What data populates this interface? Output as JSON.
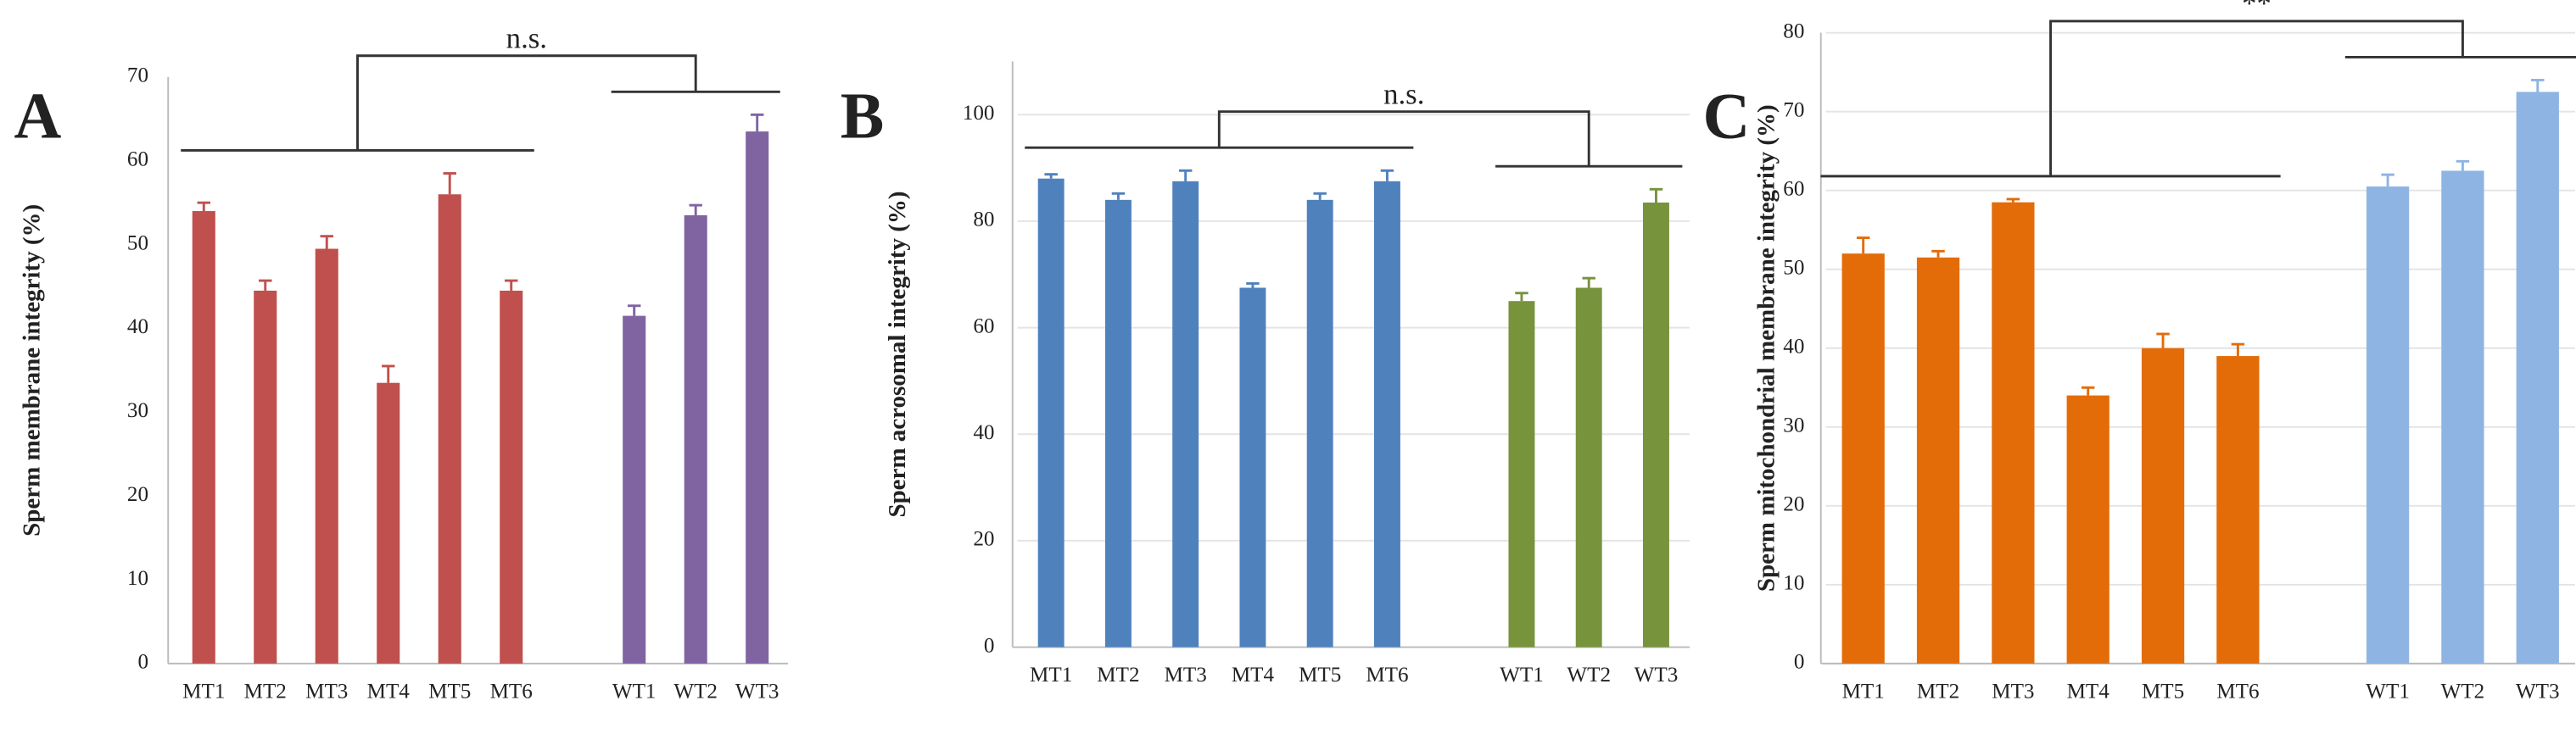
{
  "chart_data": [
    {
      "type": "bar",
      "panel_label": "A",
      "significance": "n.s.",
      "y_label": "Sperm membrane integrity (%)",
      "categories": [
        "MT1",
        "MT2",
        "MT3",
        "MT4",
        "MT5",
        "MT6",
        null,
        "WT1",
        "WT2",
        "WT3"
      ],
      "values": [
        54,
        44.5,
        49.5,
        33.5,
        56,
        44.5,
        null,
        41.5,
        53.5,
        63.5
      ],
      "errors": [
        1,
        1.2,
        1.5,
        2,
        2.5,
        1.2,
        null,
        1.2,
        1.2,
        2
      ],
      "colors": [
        "#c0504d",
        "#c0504d",
        "#c0504d",
        "#c0504d",
        "#c0504d",
        "#c0504d",
        null,
        "#8064a2",
        "#8064a2",
        "#8064a2"
      ],
      "ylim": [
        0,
        70
      ],
      "yticks": [
        0,
        10,
        20,
        30,
        40,
        50,
        60,
        70
      ],
      "grid": false
    },
    {
      "type": "bar",
      "panel_label": "B",
      "significance": "n.s.",
      "y_label": "Sperm acrosomal integrity (%)",
      "categories": [
        "MT1",
        "MT2",
        "MT3",
        "MT4",
        "MT5",
        "MT6",
        null,
        "WT1",
        "WT2",
        "WT3"
      ],
      "values": [
        88,
        84,
        87.5,
        67.5,
        84,
        87.5,
        null,
        65,
        67.5,
        83.5
      ],
      "errors": [
        0.8,
        1.2,
        2,
        0.8,
        1.2,
        2,
        null,
        1.5,
        1.8,
        2.5
      ],
      "colors": [
        "#4f81bd",
        "#4f81bd",
        "#4f81bd",
        "#4f81bd",
        "#4f81bd",
        "#4f81bd",
        null,
        "#77933c",
        "#77933c",
        "#77933c"
      ],
      "ylim": [
        0,
        110
      ],
      "yticks": [
        0,
        20,
        40,
        60,
        80,
        100
      ],
      "grid": true
    },
    {
      "type": "bar",
      "panel_label": "C",
      "significance": "**",
      "y_label": "Sperm mitochondrial membrane integrity (%)",
      "categories": [
        "MT1",
        "MT2",
        "MT3",
        "MT4",
        "MT5",
        "MT6",
        null,
        "WT1",
        "WT2",
        "WT3"
      ],
      "values": [
        52,
        51.5,
        58.5,
        34,
        40,
        39,
        null,
        60.5,
        62.5,
        72.5
      ],
      "errors": [
        2,
        0.8,
        0.4,
        1,
        1.8,
        1.5,
        null,
        1.5,
        1.2,
        1.5
      ],
      "colors": [
        "#e36c09",
        "#e36c09",
        "#e36c09",
        "#e36c09",
        "#e36c09",
        "#e36c09",
        null,
        "#8eb4e3",
        "#8eb4e3",
        "#8eb4e3"
      ],
      "ylim": [
        0,
        80
      ],
      "yticks": [
        0,
        10,
        20,
        30,
        40,
        50,
        60,
        70,
        80
      ],
      "grid": true
    }
  ]
}
